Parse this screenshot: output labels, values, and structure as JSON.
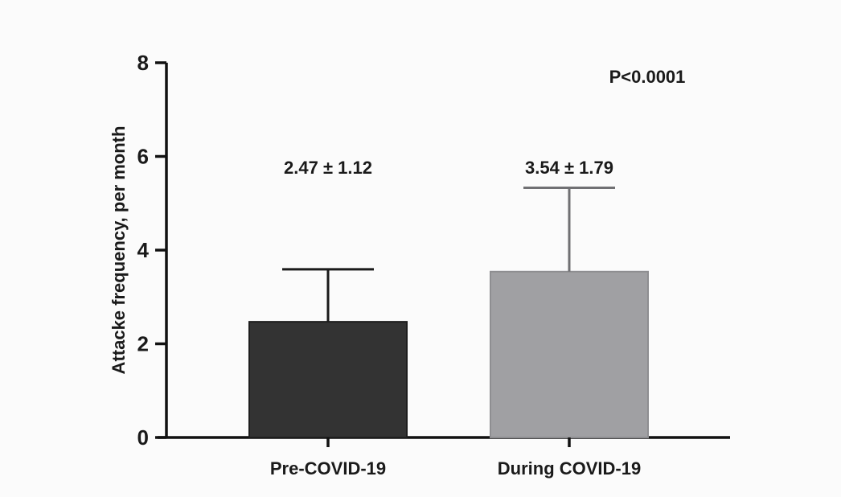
{
  "chart_data": {
    "type": "bar",
    "title": "",
    "xlabel": "",
    "ylabel": "Attacke frequency, per month",
    "ylim": [
      0,
      8
    ],
    "yticks": [
      0,
      2,
      4,
      6,
      8
    ],
    "categories": [
      "Pre-COVID-19",
      "During COVID-19"
    ],
    "values": [
      2.47,
      3.54
    ],
    "errors": [
      1.12,
      1.79
    ],
    "colors": [
      "#333333",
      "#a0a0a3"
    ],
    "annotations": [
      "2.47 ± 1.12",
      "3.54 ± 1.79"
    ],
    "p_value_text": "P<0.0001",
    "grid": false
  }
}
